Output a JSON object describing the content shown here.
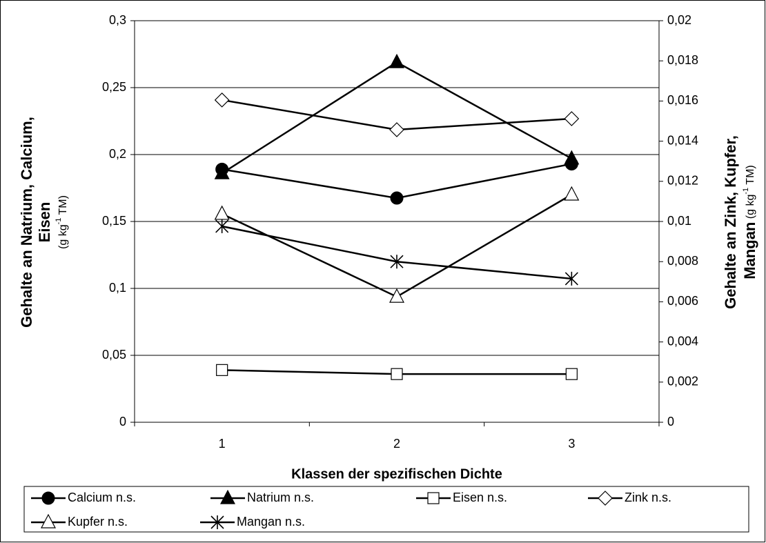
{
  "chart_data": {
    "type": "line",
    "x_label": "Klassen der spezifischen Dichte",
    "y_label": {
      "lines": [
        "Gehalte an Natrium, Calcium,",
        "Eisen"
      ],
      "unit": [
        "(g kg",
        "-1",
        " TM)"
      ]
    },
    "y2_label": {
      "lines": [
        "Gehalte an Zink, Kupfer,",
        "Mangan"
      ],
      "unit": [
        " (g kg",
        "-1",
        " TM)"
      ]
    },
    "categories": [
      "1",
      "2",
      "3"
    ],
    "ylim": [
      0,
      0.3
    ],
    "yticks": [
      0,
      {
        "value": 0.05,
        "label": "0,05"
      },
      {
        "value": 0.1,
        "label": "0,1"
      },
      {
        "value": 0.15,
        "label": "0,15"
      },
      {
        "value": 0.2,
        "label": "0,2"
      },
      {
        "value": 0.25,
        "label": "0,25"
      },
      {
        "value": 0.3,
        "label": "0,3"
      }
    ],
    "y2lim": [
      0,
      0.02
    ],
    "y2ticks": [
      0,
      {
        "value": 0.002,
        "label": "0,002"
      },
      {
        "value": 0.004,
        "label": "0,004"
      },
      {
        "value": 0.006,
        "label": "0,006"
      },
      {
        "value": 0.008,
        "label": "0,008"
      },
      {
        "value": 0.01,
        "label": "0,01"
      },
      {
        "value": 0.012,
        "label": "0,012"
      },
      {
        "value": 0.014,
        "label": "0,014"
      },
      {
        "value": 0.016,
        "label": "0,016"
      },
      {
        "value": 0.018,
        "label": "0,018"
      },
      {
        "value": 0.02,
        "label": "0,02"
      }
    ],
    "grid": true,
    "legend": "bottom",
    "series": [
      {
        "name": "Calcium n.s.",
        "color": "#000000",
        "marker": "circle",
        "values": [
          0.189,
          0.1675,
          0.193
        ]
      },
      {
        "name": "Natrium n.s.",
        "color": "#000000",
        "marker": "triangle",
        "values": [
          0.186,
          0.269,
          0.197
        ]
      },
      {
        "name": "Eisen n.s.",
        "color": "#000000",
        "marker": "square",
        "values": [
          0.039,
          0.036,
          0.036
        ]
      },
      {
        "name": "Zink n.s.",
        "color": "#000000",
        "marker": "diamond",
        "axis": "y2",
        "values": [
          0.01605,
          0.01457,
          0.01512
        ]
      },
      {
        "name": "Kupfer n.s.",
        "color": "#000000",
        "marker": "triangle-open",
        "axis": "y2",
        "values": [
          0.01038,
          0.00625,
          0.01134
        ]
      },
      {
        "name": "Mangan n.s.",
        "color": "#000000",
        "marker": "asterisk",
        "axis": "y2",
        "values": [
          0.00976,
          0.008,
          0.00715
        ]
      }
    ]
  }
}
